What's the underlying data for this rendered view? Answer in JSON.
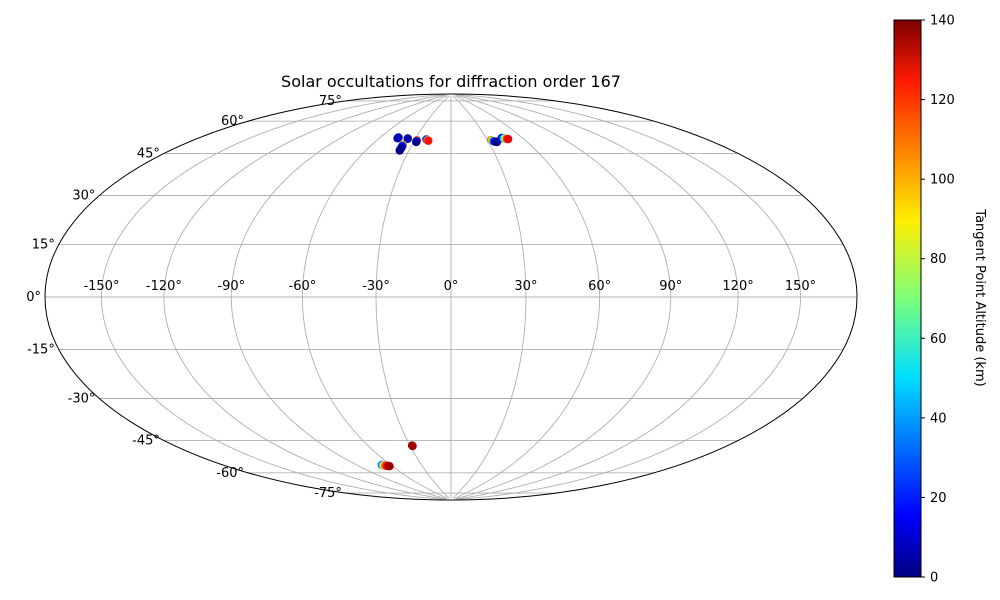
{
  "chart_data": {
    "type": "scatter",
    "projection": "hammer",
    "title": "Solar occultations for diffraction order 167",
    "grid": true,
    "longitude_ticks": [
      "-150°",
      "-120°",
      "-90°",
      "-60°",
      "-30°",
      "0°",
      "30°",
      "60°",
      "90°",
      "120°",
      "150°"
    ],
    "longitude_values": [
      -150,
      -120,
      -90,
      -60,
      -30,
      0,
      30,
      60,
      90,
      120,
      150
    ],
    "latitude_ticks": [
      "-75°",
      "-60°",
      "-45°",
      "-30°",
      "-15°",
      "0°",
      "15°",
      "30°",
      "45°",
      "60°",
      "75°"
    ],
    "latitude_values": [
      -75,
      -60,
      -45,
      -30,
      -15,
      0,
      15,
      30,
      45,
      60,
      75
    ],
    "colorbar": {
      "label": "Tangent Point Altitude (km)",
      "colormap": "jet",
      "range": [
        0,
        140
      ],
      "ticks": [
        "0",
        "20",
        "40",
        "60",
        "80",
        "100",
        "120",
        "140"
      ],
      "tick_values": [
        0,
        20,
        40,
        60,
        80,
        100,
        120,
        140
      ]
    },
    "points_lon_lat_alt": [
      [
        -45,
        66.5,
        2
      ],
      [
        -45.1,
        66.3,
        5
      ],
      [
        -44.9,
        66.7,
        8
      ],
      [
        -36.5,
        66.5,
        3
      ],
      [
        -36.4,
        66.3,
        6
      ],
      [
        -37,
        63.5,
        100
      ],
      [
        -36.8,
        63.0,
        30
      ],
      [
        -36.6,
        62.6,
        15
      ],
      [
        -36.6,
        61.8,
        5
      ],
      [
        -36.6,
        61.3,
        3
      ],
      [
        -36.5,
        60.8,
        2
      ],
      [
        -28.1,
        65.9,
        110
      ],
      [
        -28.0,
        65.5,
        30
      ],
      [
        -27.9,
        65.2,
        8
      ],
      [
        -27.9,
        65.0,
        3
      ],
      [
        -20.6,
        66.4,
        10
      ],
      [
        -20.0,
        66.2,
        30
      ],
      [
        -19.2,
        66.0,
        100
      ],
      [
        -18.6,
        65.8,
        120
      ],
      [
        33.0,
        65.8,
        110
      ],
      [
        33.5,
        65.6,
        95
      ],
      [
        34.0,
        65.4,
        60
      ],
      [
        34.6,
        65.2,
        30
      ],
      [
        35.3,
        65.0,
        12
      ],
      [
        36.0,
        64.9,
        6
      ],
      [
        36.7,
        64.8,
        3
      ],
      [
        43.0,
        66.5,
        10
      ],
      [
        43.7,
        66.4,
        20
      ],
      [
        44.4,
        66.3,
        35
      ],
      [
        45.0,
        66.2,
        55
      ],
      [
        45.6,
        66.1,
        80
      ],
      [
        46.2,
        66.0,
        100
      ],
      [
        46.8,
        65.9,
        115
      ],
      [
        47.5,
        65.8,
        125
      ],
      [
        -28.5,
        -62.0,
        140
      ],
      [
        -28.3,
        -62.2,
        135
      ],
      [
        -68.0,
        -69.8,
        25
      ],
      [
        -67.6,
        -69.9,
        40
      ],
      [
        -67.2,
        -70.0,
        60
      ],
      [
        -66.8,
        -70.1,
        80
      ],
      [
        -66.3,
        -70.2,
        95
      ],
      [
        -65.8,
        -70.3,
        105
      ],
      [
        -65.2,
        -70.3,
        112
      ],
      [
        -64.6,
        -70.4,
        118
      ],
      [
        -64.0,
        -70.5,
        124
      ],
      [
        -63.3,
        -70.6,
        130
      ],
      [
        -62.5,
        -70.7,
        136
      ]
    ]
  }
}
